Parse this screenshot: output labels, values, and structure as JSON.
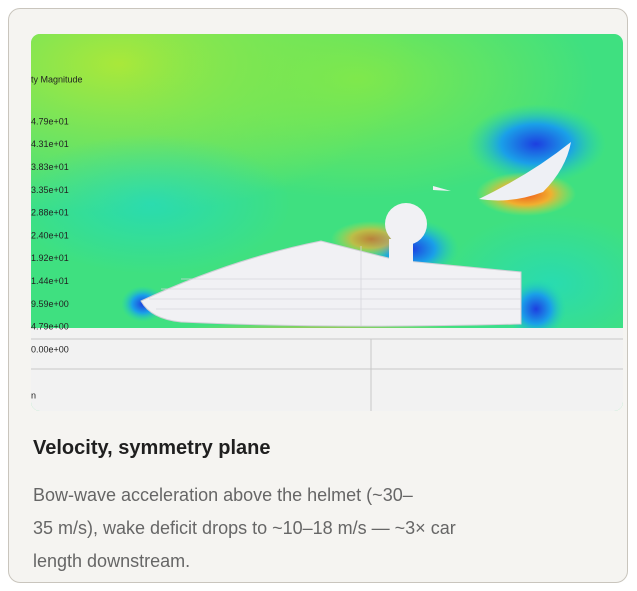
{
  "figure": {
    "legend_title": "ty Magnitude",
    "legend_labels": [
      "4.79e+01",
      "4.31e+01",
      "3.83e+01",
      "3.35e+01",
      "2.88e+01",
      "2.40e+01",
      "1.92e+01",
      "1.44e+01",
      "9.59e+00",
      "4.79e+00",
      "0.00e+00"
    ],
    "footer_fragment": "n"
  },
  "caption": {
    "title": "Velocity, symmetry plane",
    "body_lines": [
      "Bow-wave acceleration above the helmet (~30–",
      "35 m/s), wake deficit drops to ~10–18 m/s — ~3× car",
      "length downstream."
    ]
  }
}
